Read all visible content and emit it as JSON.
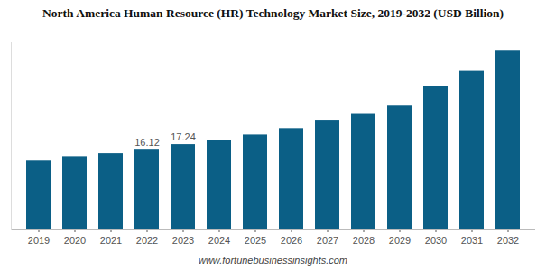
{
  "chart_data": {
    "type": "bar",
    "title": "North America Human Resource (HR) Technology Market Size, 2019-2032 (USD Billion)",
    "subtitle": "www.fortunebusinessinsights.com",
    "categories": [
      "2019",
      "2020",
      "2021",
      "2022",
      "2023",
      "2024",
      "2025",
      "2026",
      "2027",
      "2028",
      "2029",
      "2030",
      "2031",
      "2032"
    ],
    "values": [
      13.9,
      14.8,
      15.4,
      16.12,
      17.24,
      18.1,
      19.2,
      20.5,
      22.2,
      23.4,
      25.1,
      29.1,
      32.2,
      36.3
    ],
    "data_labels": true,
    "value_labels": [
      null,
      null,
      null,
      "16.12",
      "17.24",
      null,
      null,
      null,
      null,
      null,
      null,
      null,
      null,
      null
    ],
    "color": "#0b5f86",
    "ylim": [
      0,
      38
    ],
    "yticks": [],
    "tick_labels": "x",
    "grid": false
  }
}
